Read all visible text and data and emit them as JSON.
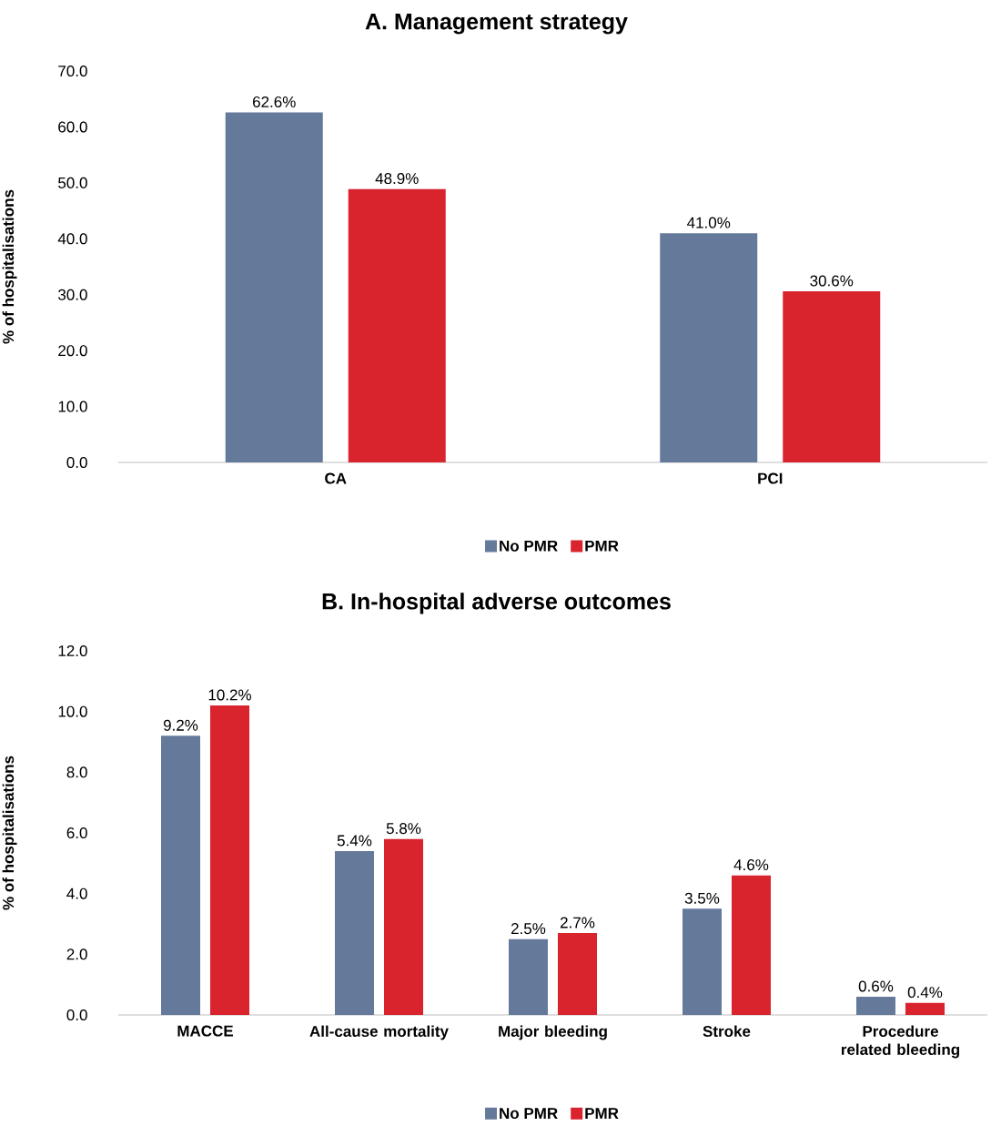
{
  "chart_data": [
    {
      "type": "bar",
      "title": "A. Management strategy",
      "ylabel": "% of hospitalisations",
      "categories": [
        "CA",
        "PCI"
      ],
      "series": [
        {
          "name": "No PMR",
          "color": "#657a9b",
          "values": [
            62.6,
            41.0
          ],
          "value_labels": [
            "62.6%",
            "41.0%"
          ]
        },
        {
          "name": "PMR",
          "color": "#d9232d",
          "values": [
            48.9,
            30.6
          ],
          "value_labels": [
            "48.9%",
            "30.6%"
          ]
        }
      ],
      "ylim": [
        0,
        70
      ],
      "yticks": [
        {
          "value": 0,
          "label": "0.0"
        },
        {
          "value": 10,
          "label": "10.0"
        },
        {
          "value": 20,
          "label": "20.0"
        },
        {
          "value": 30,
          "label": "30.0"
        },
        {
          "value": 40,
          "label": "40.0"
        },
        {
          "value": 50,
          "label": "50.0"
        },
        {
          "value": 60,
          "label": "60.0"
        },
        {
          "value": 70,
          "label": "70.0"
        }
      ],
      "legend": "bottom",
      "grid": false
    },
    {
      "type": "bar",
      "title": "B. In-hospital adverse outcomes",
      "ylabel": "% of hospitalisations",
      "categories": [
        "MACCE",
        "All-cause mortality",
        "Major bleeding",
        "Stroke",
        "Procedure related bleeding"
      ],
      "series": [
        {
          "name": "No PMR",
          "color": "#657a9b",
          "values": [
            9.2,
            5.4,
            2.5,
            3.5,
            0.6
          ],
          "value_labels": [
            "9.2%",
            "5.4%",
            "2.5%",
            "3.5%",
            "0.6%"
          ]
        },
        {
          "name": "PMR",
          "color": "#d9232d",
          "values": [
            10.2,
            5.8,
            2.7,
            4.6,
            0.4
          ],
          "value_labels": [
            "10.2%",
            "5.8%",
            "2.7%",
            "4.6%",
            "0.4%"
          ]
        }
      ],
      "ylim": [
        0,
        12
      ],
      "yticks": [
        {
          "value": 0,
          "label": "0.0"
        },
        {
          "value": 2,
          "label": "2.0"
        },
        {
          "value": 4,
          "label": "4.0"
        },
        {
          "value": 6,
          "label": "6.0"
        },
        {
          "value": 8,
          "label": "8.0"
        },
        {
          "value": 10,
          "label": "10.0"
        },
        {
          "value": 12,
          "label": "12.0"
        }
      ],
      "legend": "bottom",
      "grid": false
    }
  ]
}
